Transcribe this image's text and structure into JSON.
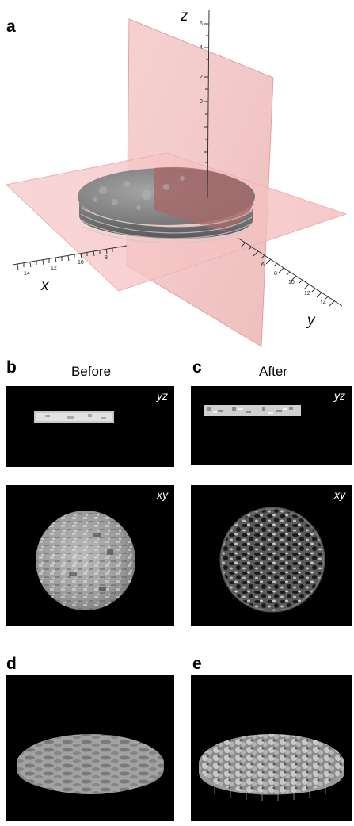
{
  "figure": {
    "panel_a": {
      "letter": "a",
      "axes": {
        "x": "x",
        "y": "y",
        "z": "z"
      },
      "x_ticks": [
        "14",
        "12",
        "10",
        "8"
      ],
      "y_ticks": [
        "6",
        "8",
        "10",
        "12",
        "14"
      ],
      "z_ticks": [
        "6",
        "4",
        "2",
        "0"
      ],
      "plane_color": "#f2b8b8",
      "sample_color": "#8f8f8f",
      "sample_cut_color": "#b07070"
    },
    "panel_b": {
      "letter": "b",
      "caption": "Before",
      "yz_label": "yz",
      "xy_label": "xy"
    },
    "panel_c": {
      "letter": "c",
      "caption": "After",
      "yz_label": "yz",
      "xy_label": "xy"
    },
    "panel_d": {
      "letter": "d"
    },
    "panel_e": {
      "letter": "e"
    }
  }
}
